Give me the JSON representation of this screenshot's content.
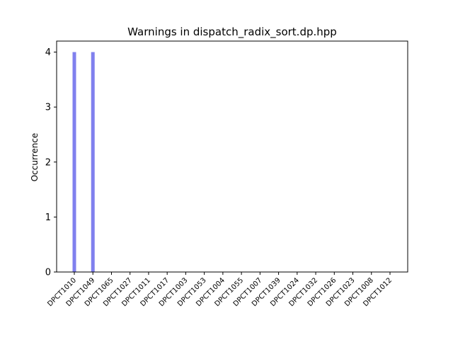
{
  "chart_data": {
    "type": "bar",
    "title": "Warnings in dispatch_radix_sort.dp.hpp",
    "xlabel": "",
    "ylabel": "Occurrence",
    "categories": [
      "DPCT1010",
      "DPCT1049",
      "DPCT1065",
      "DPCT1027",
      "DPCT1011",
      "DPCT1017",
      "DPCT1003",
      "DPCT1053",
      "DPCT1004",
      "DPCT1055",
      "DPCT1007",
      "DPCT1039",
      "DPCT1024",
      "DPCT1032",
      "DPCT1026",
      "DPCT1023",
      "DPCT1008",
      "DPCT1012"
    ],
    "values": [
      4,
      4,
      0,
      0,
      0,
      0,
      0,
      0,
      0,
      0,
      0,
      0,
      0,
      0,
      0,
      0,
      0,
      0
    ],
    "yticks": [
      "0",
      "1",
      "2",
      "3",
      "4"
    ],
    "ylim": [
      0,
      4.2
    ],
    "grid": false,
    "bar_color": "#8080ee"
  }
}
